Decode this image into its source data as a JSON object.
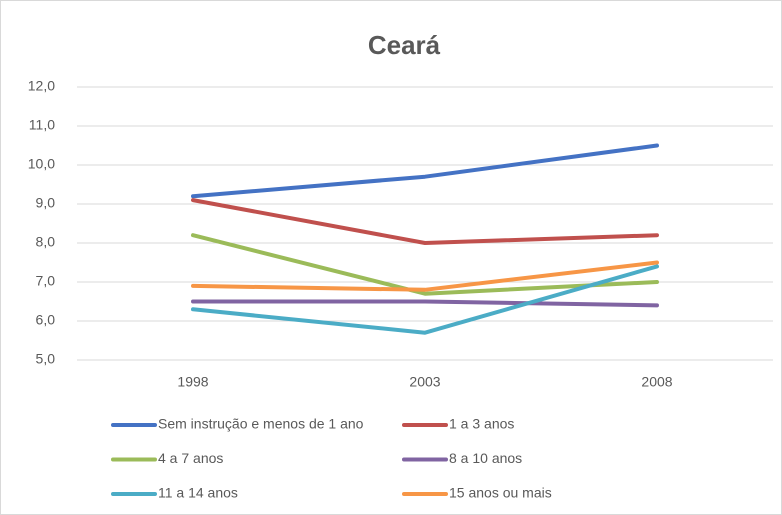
{
  "chart_data": {
    "type": "line",
    "title": "Ceará",
    "categories": [
      "1998",
      "2003",
      "2008"
    ],
    "series": [
      {
        "name": "Sem instrução e menos de 1 ano",
        "color": "#4472c4",
        "values": [
          9.2,
          9.7,
          10.5
        ]
      },
      {
        "name": "1 a 3 anos",
        "color": "#c0504d",
        "values": [
          9.1,
          8.0,
          8.2
        ]
      },
      {
        "name": "4 a 7 anos",
        "color": "#9bbb59",
        "values": [
          8.2,
          6.7,
          7.0
        ]
      },
      {
        "name": "8 a 10 anos",
        "color": "#8064a2",
        "values": [
          6.5,
          6.5,
          6.4
        ]
      },
      {
        "name": "11 a 14 anos",
        "color": "#4bacc6",
        "values": [
          6.3,
          5.7,
          7.4
        ]
      },
      {
        "name": "15 anos ou mais",
        "color": "#f79646",
        "values": [
          6.9,
          6.8,
          7.5
        ]
      }
    ],
    "ylim": [
      5,
      12
    ],
    "yticks": [
      {
        "value": 5,
        "label": "5,0"
      },
      {
        "value": 6,
        "label": "6,0"
      },
      {
        "value": 7,
        "label": "7,0"
      },
      {
        "value": 8,
        "label": "8,0"
      },
      {
        "value": 9,
        "label": "9,0"
      },
      {
        "value": 10,
        "label": "10,0"
      },
      {
        "value": 11,
        "label": "11,0"
      },
      {
        "value": 12,
        "label": "12,0"
      }
    ],
    "grid": true,
    "legend": "bottom"
  }
}
